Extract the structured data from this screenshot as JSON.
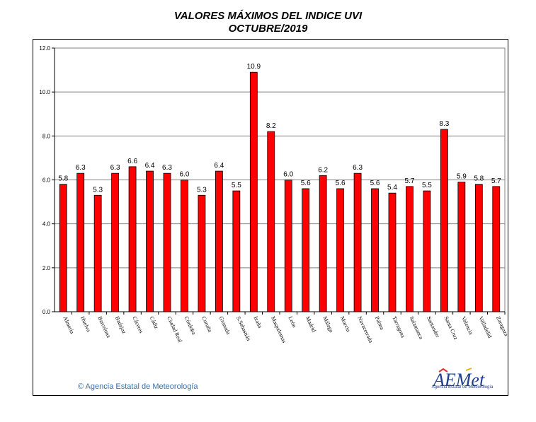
{
  "chart_data": {
    "type": "bar",
    "title": "VALORES MÁXIMOS DEL INDICE UVI",
    "subtitle": "OCTUBRE/2019",
    "categories": [
      "Almería",
      "Huelva",
      "Barcelona",
      "Badajoz",
      "Cáceres",
      "Cádiz",
      "Ciudad Real",
      "Córdoba",
      "Coruña",
      "Granada",
      "S.Sebastián",
      "Izaña",
      "Maspalomas",
      "León",
      "Madrid",
      "Málaga",
      "Murcia",
      "Navacerrada",
      "Palma",
      "Tarragona",
      "Salamanca",
      "Santander",
      "Santa Cruz",
      "Valencia",
      "Valladolid",
      "Zaragoza"
    ],
    "values": [
      5.8,
      6.3,
      5.3,
      6.3,
      6.6,
      6.4,
      6.3,
      6.0,
      5.3,
      6.4,
      5.5,
      10.9,
      8.2,
      6.0,
      5.6,
      6.2,
      5.6,
      6.3,
      5.6,
      5.4,
      5.7,
      5.5,
      8.3,
      5.9,
      5.8,
      5.7
    ],
    "value_labels": [
      "5.8",
      "6.3",
      "5.3",
      "6.3",
      "6.6",
      "6.4",
      "6.3",
      "6.0",
      "5.3",
      "6.4",
      "5.5",
      "10.9",
      "8.2",
      "6.0",
      "5.6",
      "6.2",
      "5.6",
      "6.3",
      "5.6",
      "5.4",
      "5.7",
      "5.5",
      "8.3",
      "5.9",
      "5.8",
      "5.7"
    ],
    "ylim": [
      0,
      12
    ],
    "yticks": [
      "0.0",
      "2.0",
      "4.0",
      "6.0",
      "8.0",
      "10.0",
      "12.0"
    ],
    "xlabel": "",
    "ylabel": "",
    "grid": true,
    "bar_color": "#ff0000",
    "legend": false
  },
  "footer": {
    "credit": "© Agencia Estatal de Meteorología",
    "logo_text": "AEMet",
    "logo_caption": "Agencia Estatal de Meteorología"
  }
}
